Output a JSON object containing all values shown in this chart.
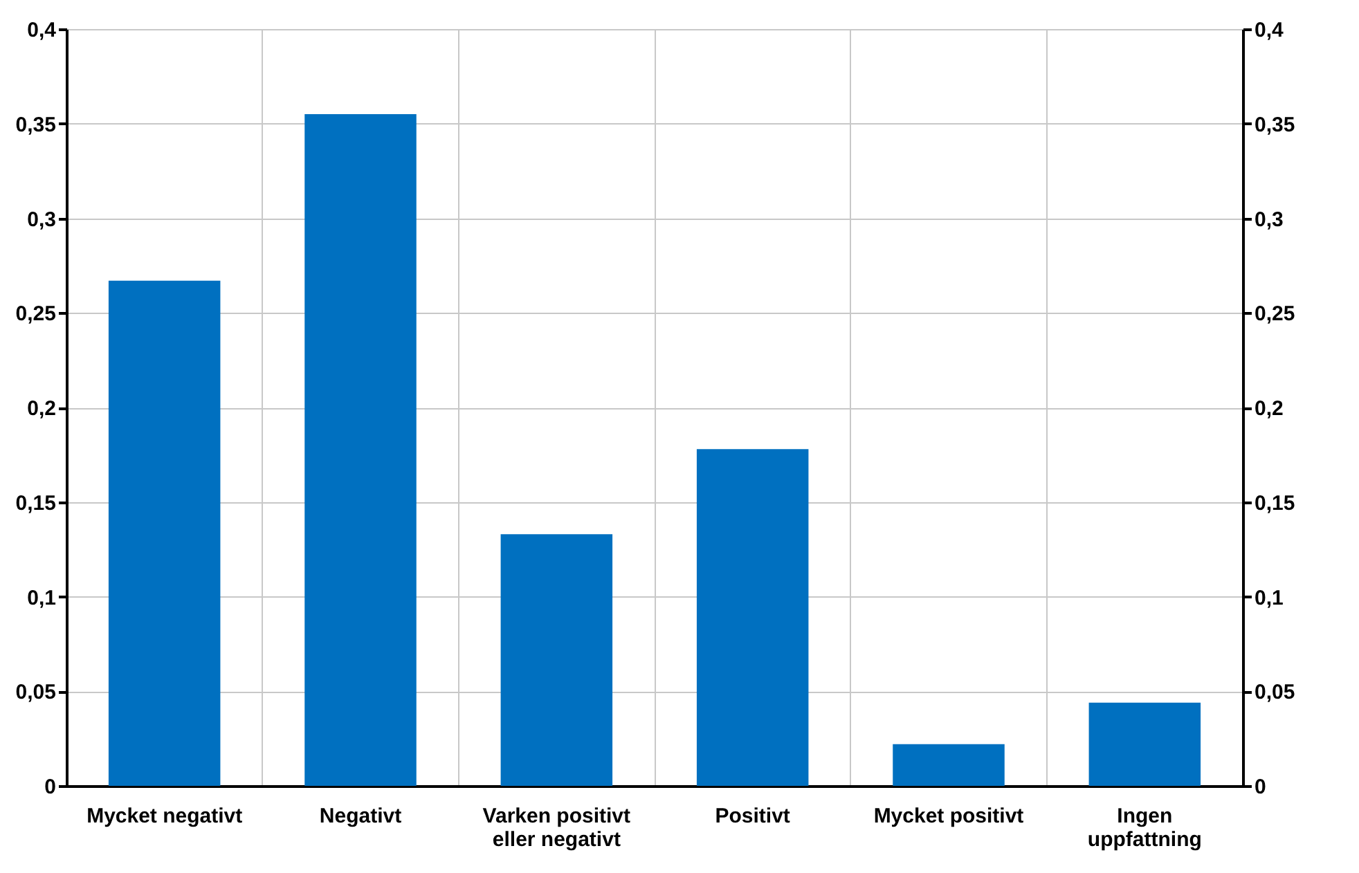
{
  "chart_data": {
    "type": "bar",
    "categories": [
      "Mycket negativt",
      "Negativt",
      "Varken positivt eller negativt",
      "Positivt",
      "Mycket positivt",
      "Ingen uppfattning"
    ],
    "series": [
      {
        "color": "#0070c0",
        "values": [
          0.267,
          0.355,
          0.133,
          0.178,
          0.022,
          0.044
        ]
      }
    ],
    "ylim": [
      0,
      0.4
    ],
    "yticks": [
      0,
      {
        "value": 0.05,
        "label": "0,05"
      },
      {
        "value": 0.1,
        "label": "0,1"
      },
      {
        "value": 0.15,
        "label": "0,15"
      },
      {
        "value": 0.2,
        "label": "0,2"
      },
      {
        "value": 0.25,
        "label": "0,25"
      },
      {
        "value": 0.3,
        "label": "0,3"
      },
      {
        "value": 0.35,
        "label": "0,35"
      },
      {
        "value": 0.4,
        "label": "0,4"
      }
    ],
    "y2lim": [
      0,
      0.4
    ],
    "y2ticks": [
      0,
      {
        "value": 0.05,
        "label": "0,05"
      },
      {
        "value": 0.1,
        "label": "0,1"
      },
      {
        "value": 0.15,
        "label": "0,15"
      },
      {
        "value": 0.2,
        "label": "0,2"
      },
      {
        "value": 0.25,
        "label": "0,25"
      },
      {
        "value": 0.3,
        "label": "0,3"
      },
      {
        "value": 0.35,
        "label": "0,35"
      },
      {
        "value": 0.4,
        "label": "0,4"
      }
    ],
    "grid": true,
    "legend": false
  }
}
